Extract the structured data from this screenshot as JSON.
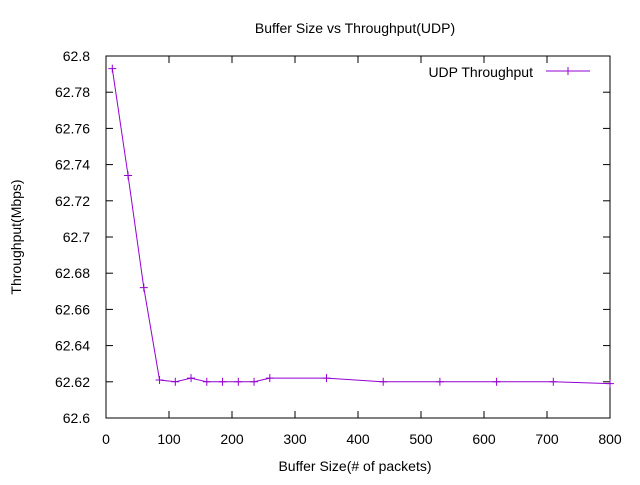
{
  "chart_data": {
    "type": "line",
    "title": "Buffer Size vs Throughput(UDP)",
    "xlabel": "Buffer Size(# of packets)",
    "ylabel": "Throughput(Mbps)",
    "xlim": [
      0,
      800
    ],
    "ylim": [
      62.6,
      62.8
    ],
    "xticks": [
      0,
      100,
      200,
      300,
      400,
      500,
      600,
      700,
      800
    ],
    "yticks": [
      62.6,
      62.62,
      62.64,
      62.66,
      62.68,
      62.7,
      62.72,
      62.74,
      62.76,
      62.78,
      62.8
    ],
    "xtick_labels": [
      "0",
      "100",
      "200",
      "300",
      "400",
      "500",
      "600",
      "700",
      "800"
    ],
    "ytick_labels": [
      "62.6",
      "62.62",
      "62.64",
      "62.66",
      "62.68",
      "62.7",
      "62.72",
      "62.74",
      "62.76",
      "62.78",
      "62.8"
    ],
    "grid": false,
    "legend_position": "top-right",
    "series": [
      {
        "name": "UDP Throughput",
        "color": "#9400d3",
        "marker": "plus",
        "x": [
          10,
          35,
          60,
          85,
          110,
          135,
          160,
          185,
          210,
          235,
          260,
          350,
          440,
          530,
          620,
          710,
          800
        ],
        "y": [
          62.793,
          62.734,
          62.672,
          62.621,
          62.62,
          62.622,
          62.62,
          62.62,
          62.62,
          62.62,
          62.622,
          62.622,
          62.62,
          62.62,
          62.62,
          62.62,
          62.619
        ]
      }
    ]
  }
}
